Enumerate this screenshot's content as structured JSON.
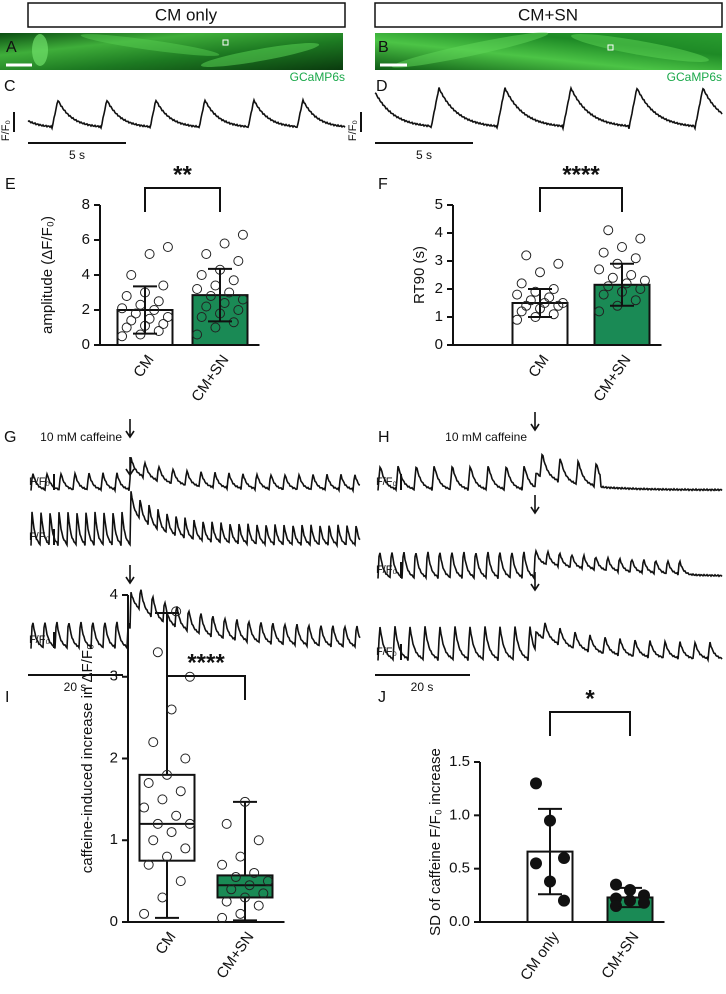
{
  "header": {
    "left": "CM only",
    "right": "CM+SN"
  },
  "images": [
    {
      "label": "A"
    },
    {
      "label": "B"
    }
  ],
  "trace_panels": [
    {
      "label": "C",
      "indicator": "GCaMP6s",
      "scale_y": "F/F₀",
      "scale_x": "5 s"
    },
    {
      "label": "D",
      "indicator": "GCaMP6s",
      "scale_y": "F/F₀",
      "scale_x": "5 s"
    },
    {
      "label": "G",
      "annotation": "10 mM caffeine",
      "scale_y": [
        "F/F₀",
        "F/F₀",
        "F/F₀"
      ],
      "scale_x": "20 s"
    },
    {
      "label": "H",
      "annotation": "10 mM caffeine",
      "scale_y": [
        "F/F₀",
        "F/F₀",
        "F/F₀"
      ],
      "scale_x": "20 s"
    }
  ],
  "chart_data": [
    {
      "type": "bar",
      "panel": "E",
      "ylabel": "amplitude (ΔF/F₀)",
      "categories": [
        "CM",
        "CM+SN"
      ],
      "values": [
        2.0,
        2.85
      ],
      "errors": [
        1.35,
        1.5
      ],
      "colors": [
        "#ffffff",
        "#1a8a55"
      ],
      "points": [
        [
          0.5,
          0.6,
          0.8,
          1.0,
          1.1,
          1.2,
          1.4,
          1.5,
          1.6,
          1.8,
          2.0,
          2.1,
          2.3,
          2.5,
          2.8,
          3.0,
          3.4,
          4.0,
          5.2,
          5.6
        ],
        [
          0.6,
          1.0,
          1.3,
          1.6,
          1.8,
          2.0,
          2.2,
          2.4,
          2.6,
          2.8,
          3.0,
          3.2,
          3.4,
          3.7,
          4.0,
          4.3,
          4.8,
          5.2,
          5.8,
          6.3
        ]
      ],
      "ylim": [
        0,
        8
      ],
      "yticks": [
        0,
        2,
        4,
        6,
        8
      ],
      "significance": "**"
    },
    {
      "type": "bar",
      "panel": "F",
      "ylabel": "RT90 (s)",
      "categories": [
        "CM",
        "CM+SN"
      ],
      "values": [
        1.5,
        2.15
      ],
      "errors": [
        0.5,
        0.75
      ],
      "colors": [
        "#ffffff",
        "#1a8a55"
      ],
      "points": [
        [
          0.9,
          1.0,
          1.1,
          1.2,
          1.3,
          1.4,
          1.4,
          1.5,
          1.5,
          1.6,
          1.7,
          1.8,
          1.9,
          2.0,
          2.2,
          2.6,
          2.9,
          3.2
        ],
        [
          1.2,
          1.4,
          1.6,
          1.8,
          1.9,
          2.0,
          2.1,
          2.2,
          2.3,
          2.4,
          2.5,
          2.7,
          2.9,
          3.1,
          3.3,
          3.5,
          3.8,
          4.1
        ]
      ],
      "ylim": [
        0,
        5
      ],
      "yticks": [
        0,
        1,
        2,
        3,
        4,
        5
      ],
      "significance": "****"
    },
    {
      "type": "box",
      "panel": "I",
      "ylabel": "caffeine-induced increase in ΔF/F₀",
      "categories": [
        "CM",
        "CM+SN"
      ],
      "boxes": [
        {
          "min": 0.05,
          "q1": 0.75,
          "median": 1.2,
          "q3": 1.8,
          "max": 3.78
        },
        {
          "min": 0.02,
          "q1": 0.3,
          "median": 0.45,
          "q3": 0.57,
          "max": 1.47
        }
      ],
      "colors": [
        "#ffffff",
        "#1a8a55"
      ],
      "points": [
        [
          0.1,
          0.3,
          0.5,
          0.7,
          0.8,
          0.9,
          1.0,
          1.1,
          1.2,
          1.2,
          1.3,
          1.4,
          1.5,
          1.6,
          1.7,
          1.8,
          2.0,
          2.2,
          2.6,
          3.0,
          3.3,
          3.8
        ],
        [
          0.05,
          0.1,
          0.2,
          0.25,
          0.3,
          0.35,
          0.4,
          0.45,
          0.5,
          0.55,
          0.6,
          0.7,
          0.8,
          1.0,
          1.2,
          1.47
        ]
      ],
      "ylim": [
        0,
        4
      ],
      "yticks": [
        0,
        1,
        2,
        3,
        4
      ],
      "significance": "****"
    },
    {
      "type": "bar",
      "panel": "J",
      "ylabel": "SD of caffeine F/F₀ increase",
      "categories": [
        "CM only",
        "CM+SN"
      ],
      "values": [
        0.66,
        0.23
      ],
      "errors": [
        0.4,
        0.09
      ],
      "colors": [
        "#ffffff",
        "#1a8a55"
      ],
      "points": [
        [
          1.3,
          0.95,
          0.6,
          0.55,
          0.38,
          0.2
        ],
        [
          0.35,
          0.3,
          0.25,
          0.22,
          0.2,
          0.18,
          0.15
        ]
      ],
      "ylim": [
        0,
        1.5
      ],
      "yticks": [
        {
          "value": 0,
          "label": "0.0"
        },
        {
          "value": 0.5,
          "label": "0.5"
        },
        {
          "value": 1,
          "label": "1.0"
        },
        {
          "value": 1.5,
          "label": "1.5"
        }
      ],
      "significance": "*"
    }
  ]
}
